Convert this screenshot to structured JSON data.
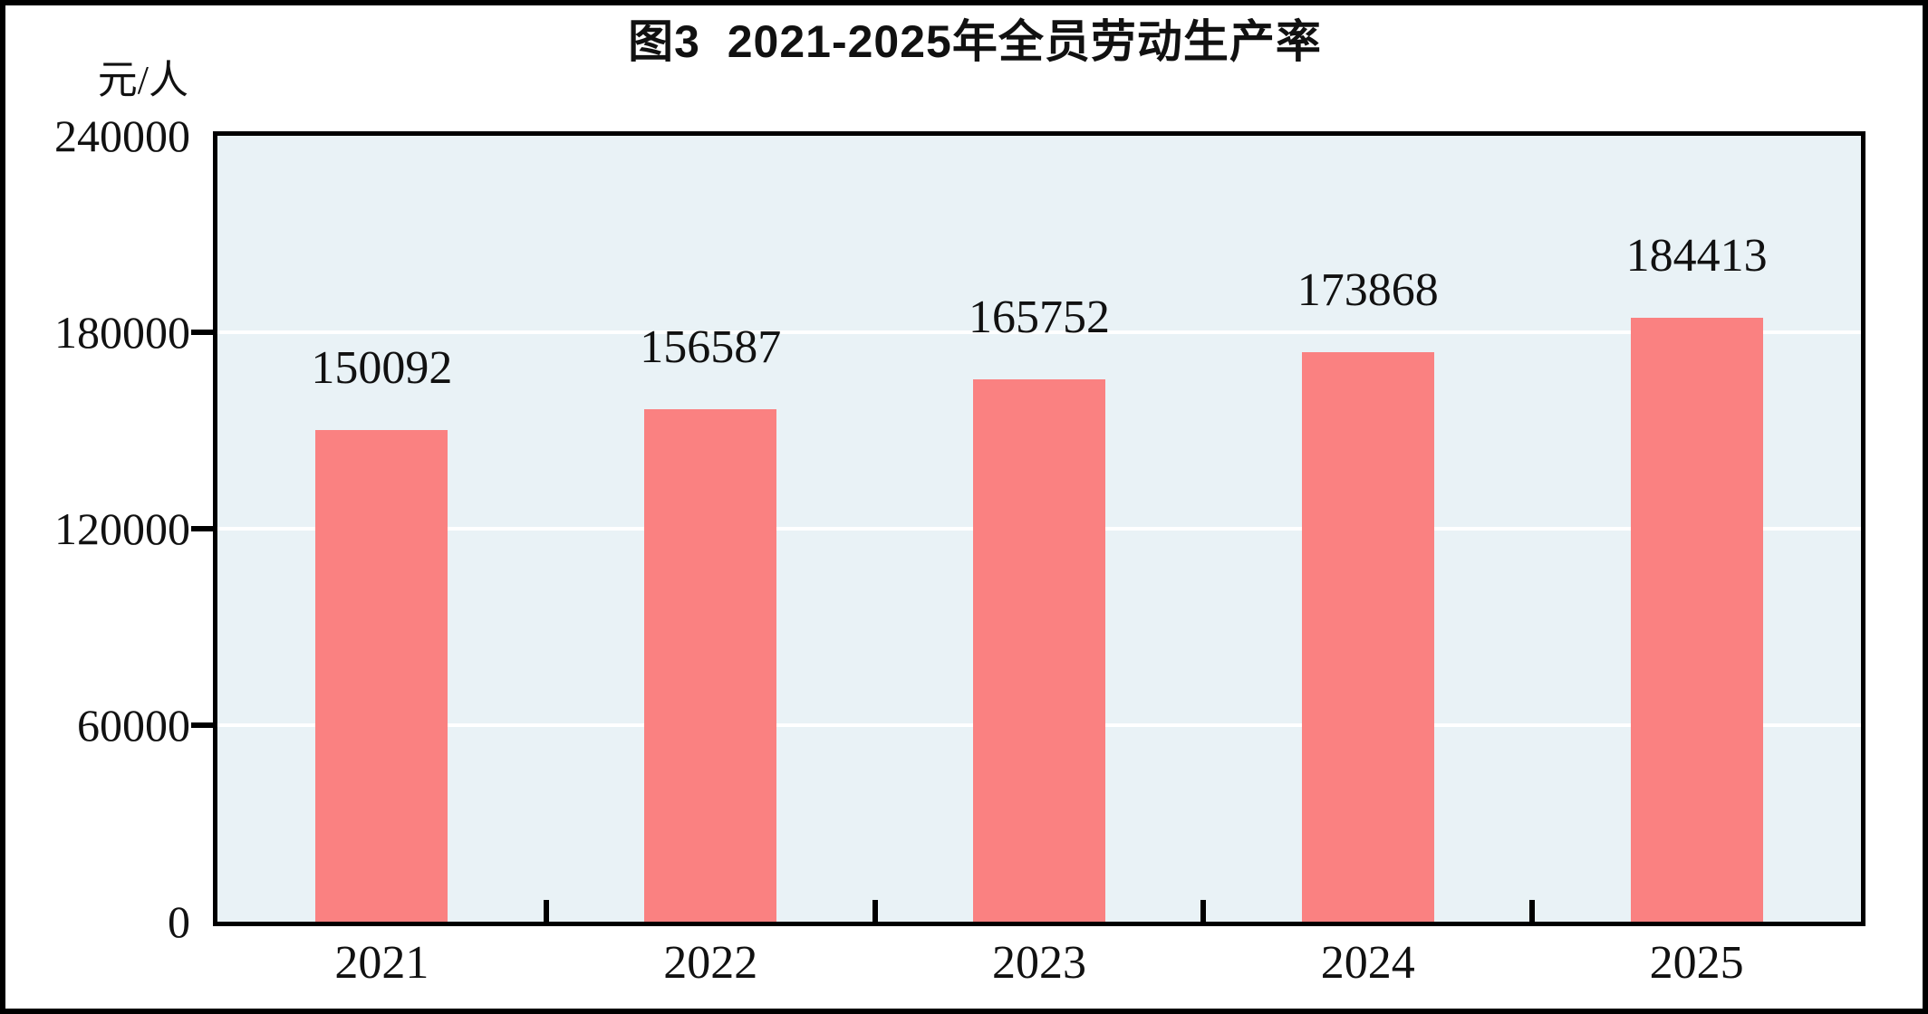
{
  "figure": {
    "title": "图3  2021-2025年全员劳动生产率",
    "unit_label": "元/人"
  },
  "chart_data": {
    "type": "bar",
    "title": "图3  2021-2025年全员劳动生产率",
    "categories": [
      "2021",
      "2022",
      "2023",
      "2024",
      "2025"
    ],
    "values": [
      150092,
      156587,
      165752,
      173868,
      184413
    ],
    "data_labels": [
      "150092",
      "156587",
      "165752",
      "173868",
      "184413"
    ],
    "xlabel": "",
    "ylabel": "元/人",
    "ylim": [
      0,
      240000
    ],
    "yticks": [
      0,
      60000,
      120000,
      180000,
      240000
    ],
    "ytick_labels": [
      "0",
      "60000",
      "120000",
      "180000",
      "240000"
    ],
    "grid": true,
    "legend": "none",
    "colors": {
      "bar_fill": "#fa8181",
      "plot_background": "#e9f2f6",
      "gridline": "#ffffff",
      "axis": "#000000",
      "text": "#111111"
    }
  }
}
